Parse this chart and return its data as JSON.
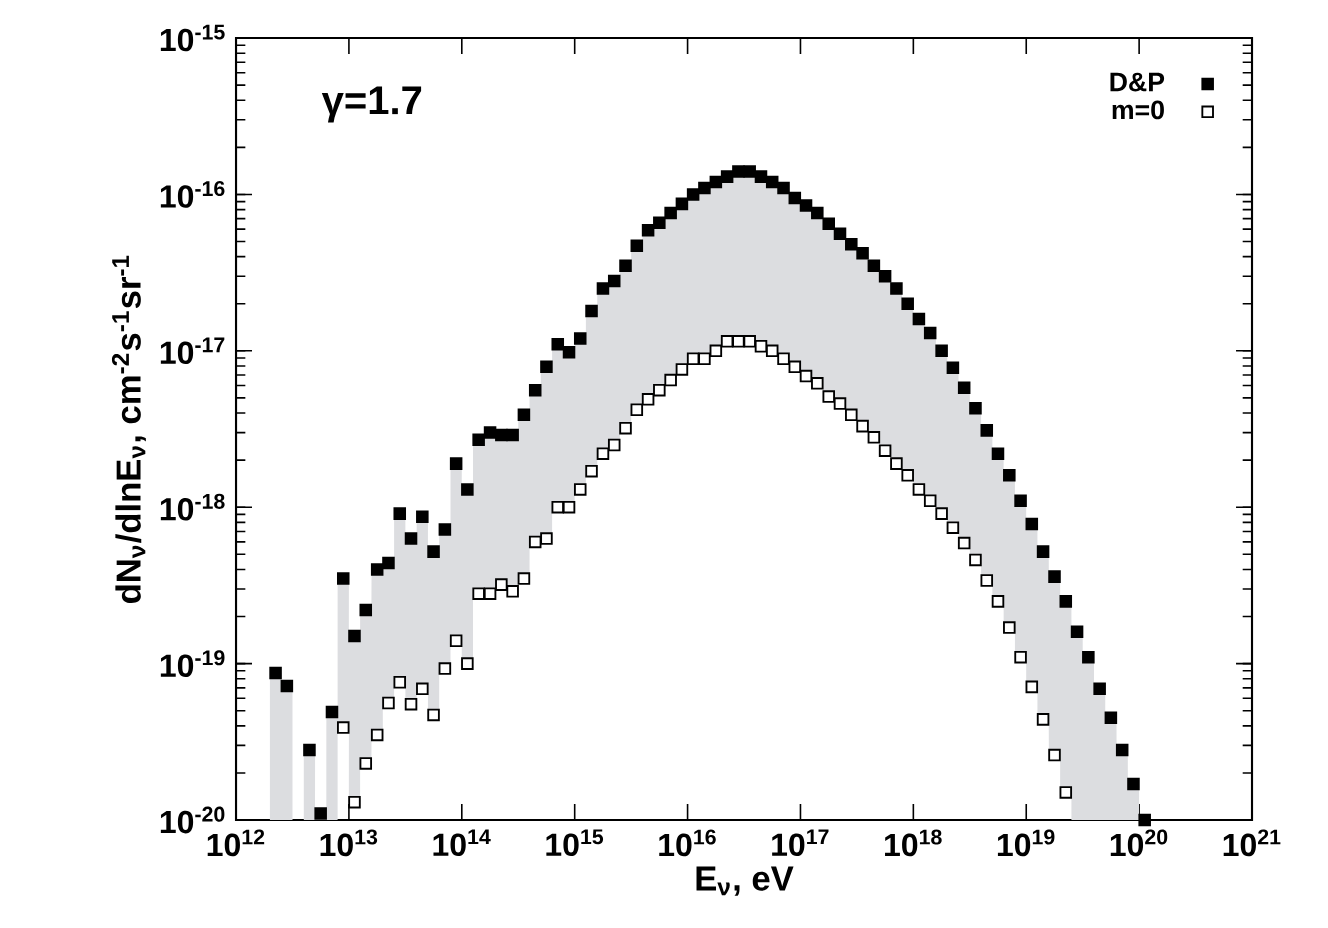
{
  "chart_data": {
    "type": "scatter",
    "xlabel": "E$_{ν}$, eV",
    "ylabel": "dN$_{ν}$/dlnE$_{ν}$, cm$^{-2}$s$^{-1}$sr$^{-1}$",
    "annotations": [
      "γ=1.7"
    ],
    "log": "xy",
    "marker": "square",
    "legend": "top right",
    "xlim": [
      1000000000000.0,
      1e+21
    ],
    "ylim": [
      1e-20,
      1e-15
    ],
    "xticks": [
      {
        "value": 1000000000000.0,
        "label": "10$^{12}$"
      },
      {
        "value": 10000000000000.0,
        "label": "10$^{13}$"
      },
      {
        "value": 100000000000000.0,
        "label": "10$^{14}$"
      },
      {
        "value": 1000000000000000.0,
        "label": "10$^{15}$"
      },
      {
        "value": 1e+16,
        "label": "10$^{16}$"
      },
      {
        "value": 1e+17,
        "label": "10$^{17}$"
      },
      {
        "value": 1e+18,
        "label": "10$^{18}$"
      },
      {
        "value": 1e+19,
        "label": "10$^{19}$"
      },
      {
        "value": 1e+20,
        "label": "10$^{20}$"
      },
      {
        "value": 1e+21,
        "label": "10$^{21}$"
      }
    ],
    "yticks": [
      {
        "value": 1e-20,
        "label": "10$^{-20}$"
      },
      {
        "value": 1e-19,
        "label": "10$^{-19}$"
      },
      {
        "value": 1e-18,
        "label": "10$^{-18}$"
      },
      {
        "value": 1e-17,
        "label": "10$^{-17}$"
      },
      {
        "value": 1e-16,
        "label": "10$^{-16}$"
      },
      {
        "value": 1e-15,
        "label": "10$^{-15}$"
      }
    ],
    "x": [
      2240000000000.0,
      2820000000000.0,
      3550000000000.0,
      4470000000000.0,
      5620000000000.0,
      7080000000000.0,
      8910000000000.0,
      11200000000000.0,
      14100000000000.0,
      17800000000000.0,
      22400000000000.0,
      28200000000000.0,
      35500000000000.0,
      44700000000000.0,
      56200000000000.0,
      70800000000000.0,
      89100000000000.0,
      112000000000000.0,
      141000000000000.0,
      178000000000000.0,
      224000000000000.0,
      282000000000000.0,
      355000000000000.0,
      447000000000000.0,
      562000000000000.0,
      708000000000000.0,
      891000000000000.0,
      1120000000000000.0,
      1410000000000000.0,
      1780000000000000.0,
      2240000000000000.0,
      2820000000000000.0,
      3550000000000000.0,
      4470000000000000.0,
      5620000000000000.0,
      7080000000000000.0,
      8910000000000000.0,
      1.12e+16,
      1.41e+16,
      1.78e+16,
      2.24e+16,
      2.82e+16,
      3.55e+16,
      4.47e+16,
      5.62e+16,
      7.08e+16,
      8.91e+16,
      1.12e+17,
      1.41e+17,
      1.78e+17,
      2.24e+17,
      2.82e+17,
      3.55e+17,
      4.47e+17,
      5.62e+17,
      7.08e+17,
      8.91e+17,
      1.12e+18,
      1.41e+18,
      1.78e+18,
      2.24e+18,
      2.82e+18,
      3.55e+18,
      4.47e+18,
      5.62e+18,
      7.08e+18,
      8.91e+18,
      1.12e+19,
      1.41e+19,
      1.78e+19,
      2.24e+19,
      2.82e+19,
      3.55e+19,
      4.47e+19,
      5.62e+19,
      7.08e+19,
      8.91e+19,
      1.12e+20
    ],
    "series": [
      {
        "name": "D&P",
        "color": "#000000",
        "values": [
          8.7e-20,
          7.2e-20,
          null,
          2.8e-20,
          1.1e-20,
          4.9e-20,
          3.5e-19,
          1.5e-19,
          2.2e-19,
          4e-19,
          4.4e-19,
          9.1e-19,
          6.3e-19,
          8.7e-19,
          5.2e-19,
          7.2e-19,
          1.9e-18,
          1.3e-18,
          2.7e-18,
          3e-18,
          2.9e-18,
          2.9e-18,
          3.9e-18,
          5.6e-18,
          7.9e-18,
          1.1e-17,
          9.8e-18,
          1.2e-17,
          1.8e-17,
          2.5e-17,
          2.8e-17,
          3.5e-17,
          4.7e-17,
          5.9e-17,
          6.6e-17,
          7.6e-17,
          8.7e-17,
          1e-16,
          1.1e-16,
          1.2e-16,
          1.3e-16,
          1.4e-16,
          1.4e-16,
          1.3e-16,
          1.2e-16,
          1.1e-16,
          9.5e-17,
          8.5e-17,
          7.6e-17,
          6.5e-17,
          5.6e-17,
          4.8e-17,
          4.2e-17,
          3.5e-17,
          3e-17,
          2.5e-17,
          2e-17,
          1.6e-17,
          1.3e-17,
          1e-17,
          7.8e-18,
          5.8e-18,
          4.3e-18,
          3.1e-18,
          2.2e-18,
          1.6e-18,
          1.1e-18,
          7.8e-19,
          5.2e-19,
          3.6e-19,
          2.5e-19,
          1.6e-19,
          1.1e-19,
          6.9e-20,
          4.5e-20,
          2.8e-20,
          1.7e-20,
          1e-20
        ],
        "upper": [
          8.7e-20,
          7.2e-20,
          null,
          2.8e-20,
          1.1e-20,
          4.9e-20,
          3.5e-19,
          1.5e-19,
          2.2e-19,
          4e-19,
          4.4e-19,
          9.1e-19,
          6.3e-19,
          8.7e-19,
          5.2e-19,
          7.2e-19,
          1.9e-18,
          1.3e-18,
          2.7e-18,
          3e-18,
          2.9e-18,
          2.9e-18,
          3.9e-18,
          5.6e-18,
          7.9e-18,
          1.1e-17,
          9.8e-18,
          1.2e-17,
          1.8e-17,
          2.5e-17,
          2.8e-17,
          3.5e-17,
          4.7e-17,
          5.9e-17,
          6.6e-17,
          7.6e-17,
          8.7e-17,
          1e-16,
          1.1e-16,
          1.2e-16,
          1.3e-16,
          1.4e-16,
          1.4e-16,
          1.3e-16,
          1.2e-16,
          1.1e-16,
          9.5e-17,
          8.5e-17,
          7.6e-17,
          6.5e-17,
          5.6e-17,
          4.8e-17,
          4.2e-17,
          3.5e-17,
          3e-17,
          2.5e-17,
          2e-17,
          1.6e-17,
          1.3e-17,
          1e-17,
          7.8e-18,
          5.8e-18,
          4.3e-18,
          3.1e-18,
          2.2e-18,
          1.6e-18,
          1.1e-18,
          7.8e-19,
          5.2e-19,
          3.6e-19,
          2.5e-19,
          1.6e-19,
          1.1e-19,
          6.9e-20,
          4.5e-20,
          2.8e-20,
          1.7e-20,
          1e-20
        ],
        "lower": [
          1e-20,
          1e-20,
          null,
          1e-20,
          1e-20,
          1e-20,
          3.9e-20,
          1.3e-20,
          2.3e-20,
          3.5e-20,
          5.6e-20,
          7.6e-20,
          5.5e-20,
          6.9e-20,
          4.7e-20,
          9.3e-20,
          1.4e-19,
          1e-19,
          2.8e-19,
          2.8e-19,
          3.2e-19,
          2.9e-19,
          3.5e-19,
          6e-19,
          6.3e-19,
          1e-18,
          1e-18,
          1.3e-18,
          1.7e-18,
          2.2e-18,
          2.5e-18,
          3.2e-18,
          4.2e-18,
          4.9e-18,
          5.6e-18,
          6.5e-18,
          7.6e-18,
          8.9e-18,
          8.9e-18,
          1e-17,
          1.15e-17,
          1.15e-17,
          1.15e-17,
          1.07e-17,
          1e-17,
          8.9e-18,
          7.9e-18,
          6.9e-18,
          6.2e-18,
          5.1e-18,
          4.6e-18,
          3.9e-18,
          3.3e-18,
          2.8e-18,
          2.3e-18,
          1.9e-18,
          1.6e-18,
          1.3e-18,
          1.1e-18,
          9.1e-19,
          7.4e-19,
          5.9e-19,
          4.6e-19,
          3.4e-19,
          2.5e-19,
          1.7e-19,
          1.1e-19,
          7.1e-20,
          4.4e-20,
          2.6e-20,
          1.5e-20,
          1e-20,
          1e-20,
          1e-20,
          1e-20,
          1e-20,
          1e-20,
          1e-20
        ]
      },
      {
        "name": "m=0",
        "color": "#000000",
        "values": [
          null,
          null,
          null,
          null,
          null,
          null,
          3.9e-20,
          1.3e-20,
          2.3e-20,
          3.5e-20,
          5.6e-20,
          7.6e-20,
          5.5e-20,
          6.9e-20,
          4.7e-20,
          9.3e-20,
          1.4e-19,
          1e-19,
          2.8e-19,
          2.8e-19,
          3.2e-19,
          2.9e-19,
          3.5e-19,
          6e-19,
          6.3e-19,
          1e-18,
          1e-18,
          1.3e-18,
          1.7e-18,
          2.2e-18,
          2.5e-18,
          3.2e-18,
          4.2e-18,
          4.9e-18,
          5.6e-18,
          6.5e-18,
          7.6e-18,
          8.9e-18,
          8.9e-18,
          1e-17,
          1.15e-17,
          1.15e-17,
          1.15e-17,
          1.07e-17,
          1e-17,
          8.9e-18,
          7.9e-18,
          6.9e-18,
          6.2e-18,
          5.1e-18,
          4.6e-18,
          3.9e-18,
          3.3e-18,
          2.8e-18,
          2.3e-18,
          1.9e-18,
          1.6e-18,
          1.3e-18,
          1.1e-18,
          9.1e-19,
          7.4e-19,
          5.9e-19,
          4.6e-19,
          3.4e-19,
          2.5e-19,
          1.7e-19,
          1.1e-19,
          7.1e-20,
          4.4e-20,
          2.6e-20,
          1.5e-20,
          null,
          null,
          null,
          null,
          null,
          null,
          null
        ]
      }
    ]
  }
}
